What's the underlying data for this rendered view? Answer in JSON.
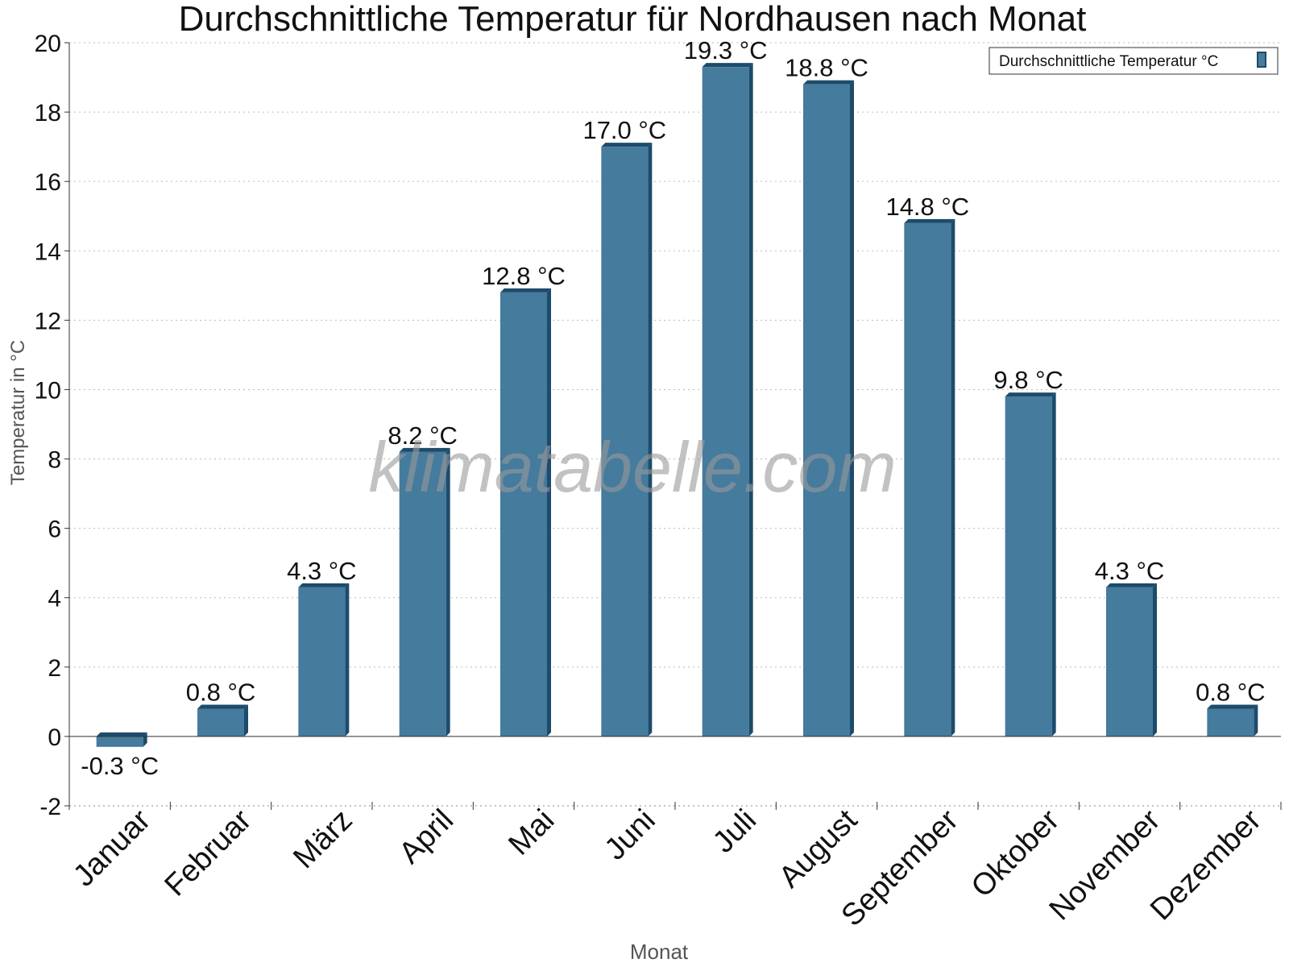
{
  "chart_data": {
    "type": "bar",
    "title": "Durchschnittliche Temperatur für Nordhausen nach Monat",
    "xlabel": "Monat",
    "ylabel": "Temperatur in °C",
    "categories": [
      "Januar",
      "Februar",
      "März",
      "April",
      "Mai",
      "Juni",
      "Juli",
      "August",
      "September",
      "Oktober",
      "November",
      "Dezember"
    ],
    "series": [
      {
        "name": "Durchschnittliche Temperatur °C",
        "values": [
          -0.3,
          0.8,
          4.3,
          8.2,
          12.8,
          17.0,
          19.3,
          18.8,
          14.8,
          9.8,
          4.3,
          0.8
        ],
        "labels": [
          "-0.3 °C",
          "0.8 °C",
          "4.3 °C",
          "8.2 °C",
          "12.8 °C",
          "17.0 °C",
          "19.3 °C",
          "18.8 °C",
          "14.8 °C",
          "9.8 °C",
          "4.3 °C",
          "0.8 °C"
        ]
      }
    ],
    "ylim": [
      -2,
      20
    ],
    "yticks": [
      -2,
      0,
      2,
      4,
      6,
      8,
      10,
      12,
      14,
      16,
      18,
      20
    ],
    "grid": true,
    "legend_position": "top-right",
    "watermark": "klimatabelle.com",
    "colors": {
      "bar": "#457b9d",
      "bar_dark": "#1d4b6b",
      "grid": "#bbbbbb",
      "axis": "#333333"
    }
  }
}
